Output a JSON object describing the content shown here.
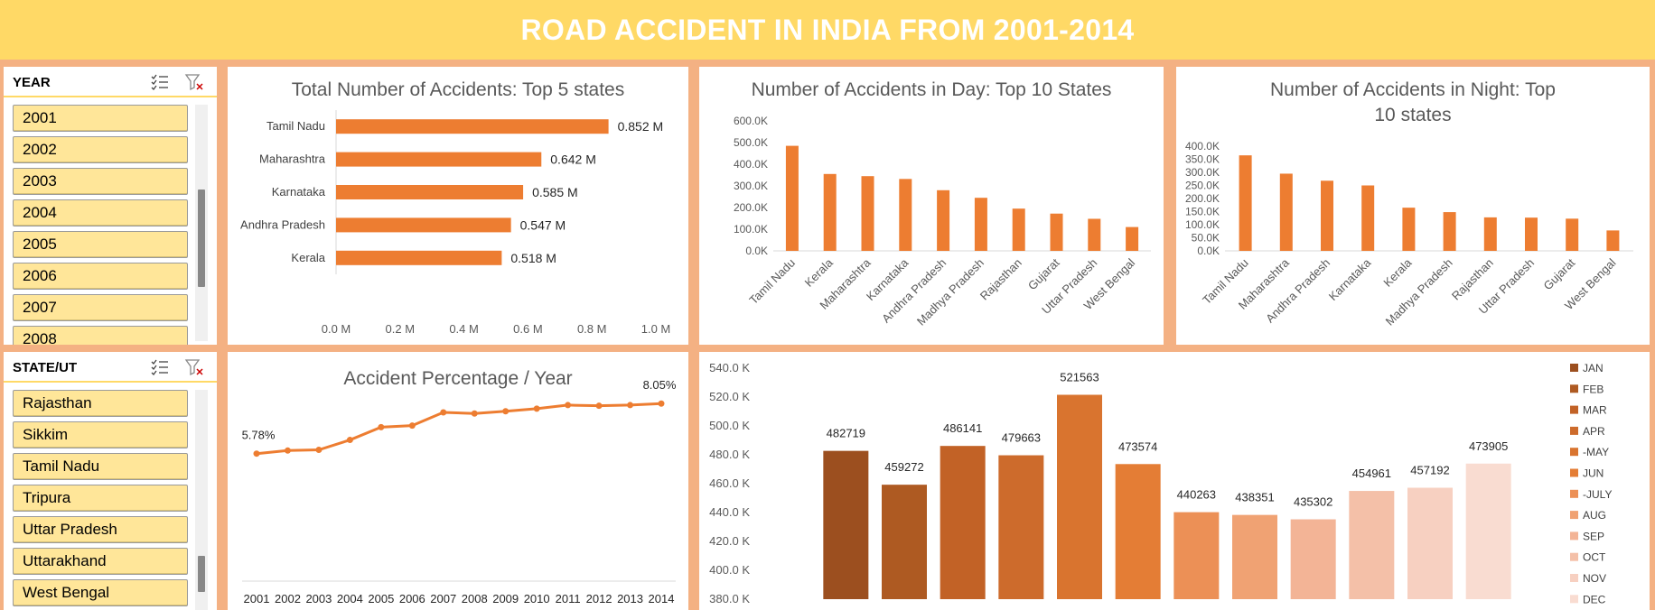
{
  "header": {
    "title": "ROAD ACCIDENT IN INDIA FROM 2001-2014"
  },
  "slicer_year": {
    "title": "YEAR",
    "items": [
      "2001",
      "2002",
      "2003",
      "2004",
      "2005",
      "2006",
      "2007",
      "2008"
    ]
  },
  "slicer_state": {
    "title": "STATE/UT",
    "items": [
      "Rajasthan",
      "Sikkim",
      "Tamil Nadu",
      "Tripura",
      "Uttar Pradesh",
      "Uttarakhand",
      "West Bengal"
    ]
  },
  "icons": {
    "multi_select": "multi-select-icon",
    "clear_filter": "clear-filter-icon"
  },
  "colors": {
    "accent": "#ed7d31",
    "header": "#ffd966",
    "background": "#f4b183",
    "slicer_item": "#ffe699"
  },
  "chart_data": [
    {
      "id": "top5",
      "type": "bar",
      "orientation": "horizontal",
      "title": "Total Number of Accidents: Top 5 states",
      "categories": [
        "Tamil Nadu",
        "Maharashtra",
        "Karnataka",
        "Andhra Pradesh",
        "Kerala"
      ],
      "values": [
        0.852,
        0.642,
        0.585,
        0.547,
        0.518
      ],
      "data_labels": [
        "0.852 M",
        "0.642 M",
        "0.585 M",
        "0.547 M",
        "0.518 M"
      ],
      "xlim": [
        0,
        1.0
      ],
      "ticks": [
        "0.0 M",
        "0.2 M",
        "0.4 M",
        "0.6 M",
        "0.8 M",
        "1.0 M"
      ],
      "unit": "M"
    },
    {
      "id": "day",
      "type": "bar",
      "title": "Number of Accidents in Day: Top 10 States",
      "categories": [
        "Tamil Nadu",
        "Kerala",
        "Maharashtra",
        "Karnataka",
        "Andhra Pradesh",
        "Madhya Pradesh",
        "Rajasthan",
        "Gujarat",
        "Uttar Pradesh",
        "West Bengal"
      ],
      "values": [
        485,
        355,
        345,
        332,
        280,
        245,
        195,
        172,
        148,
        110
      ],
      "ylim": [
        0,
        600
      ],
      "ticks": [
        "0.0K",
        "100.0K",
        "200.0K",
        "300.0K",
        "400.0K",
        "500.0K",
        "600.0K"
      ],
      "unit": "K"
    },
    {
      "id": "night",
      "type": "bar",
      "title": "Number of Accidents in Night: Top 10 states",
      "categories": [
        "Tamil Nadu",
        "Maharashtra",
        "Andhra Pradesh",
        "Karnataka",
        "Kerala",
        "Madhya Pradesh",
        "Rajasthan",
        "Uttar Pradesh",
        "Gujarat",
        "West Bengal"
      ],
      "values": [
        365,
        295,
        268,
        250,
        165,
        148,
        128,
        127,
        123,
        78
      ],
      "ylim": [
        0,
        400
      ],
      "ticks": [
        "0.0K",
        "50.0K",
        "100.0K",
        "150.0K",
        "200.0K",
        "250.0K",
        "300.0K",
        "350.0K",
        "400.0K"
      ],
      "unit": "K"
    },
    {
      "id": "percent",
      "type": "line",
      "title": "Accident Percentage / Year",
      "x": [
        "2001",
        "2002",
        "2003",
        "2004",
        "2005",
        "2006",
        "2007",
        "2008",
        "2009",
        "2010",
        "2011",
        "2012",
        "2013",
        "2014"
      ],
      "values": [
        5.78,
        5.92,
        5.95,
        6.4,
        6.98,
        7.05,
        7.65,
        7.6,
        7.7,
        7.82,
        7.98,
        7.95,
        7.98,
        8.05
      ],
      "labels": {
        "first": "5.78%",
        "last": "8.05%"
      },
      "ylim": [
        0,
        9
      ]
    },
    {
      "id": "monthly",
      "type": "bar",
      "categories": [
        "JAN",
        "FEB",
        "MAR",
        "APR",
        "-MAY",
        "JUN",
        "-JULY",
        "AUG",
        "SEP",
        "OCT",
        "NOV",
        "DEC"
      ],
      "values": [
        482719,
        459272,
        486141,
        479663,
        521563,
        473574,
        440263,
        438351,
        435302,
        454961,
        457192,
        473905
      ],
      "data_labels": [
        "482719",
        "459272",
        "486141",
        "479663",
        "521563",
        "473574",
        "440263",
        "438351",
        "435302",
        "454961",
        "457192",
        "473905"
      ],
      "legend": [
        "JAN",
        "FEB",
        "MAR",
        "APR",
        "-MAY",
        "JUN",
        "-JULY",
        "AUG",
        "SEP",
        "OCT",
        "NOV",
        "DEC"
      ],
      "colors": [
        "#9c4f1f",
        "#ae5a22",
        "#c26226",
        "#cd6b2c",
        "#d9742f",
        "#e47d35",
        "#ec9056",
        "#f0a273",
        "#f3b496",
        "#f4c0a8",
        "#f7d0c1",
        "#f9dcd1"
      ],
      "ylim": [
        380,
        540
      ],
      "ticks": [
        "380.0 K",
        "400.0 K",
        "420.0 K",
        "440.0 K",
        "460.0 K",
        "480.0 K",
        "500.0 K",
        "520.0 K",
        "540.0 K"
      ],
      "legend_position": "right"
    }
  ]
}
